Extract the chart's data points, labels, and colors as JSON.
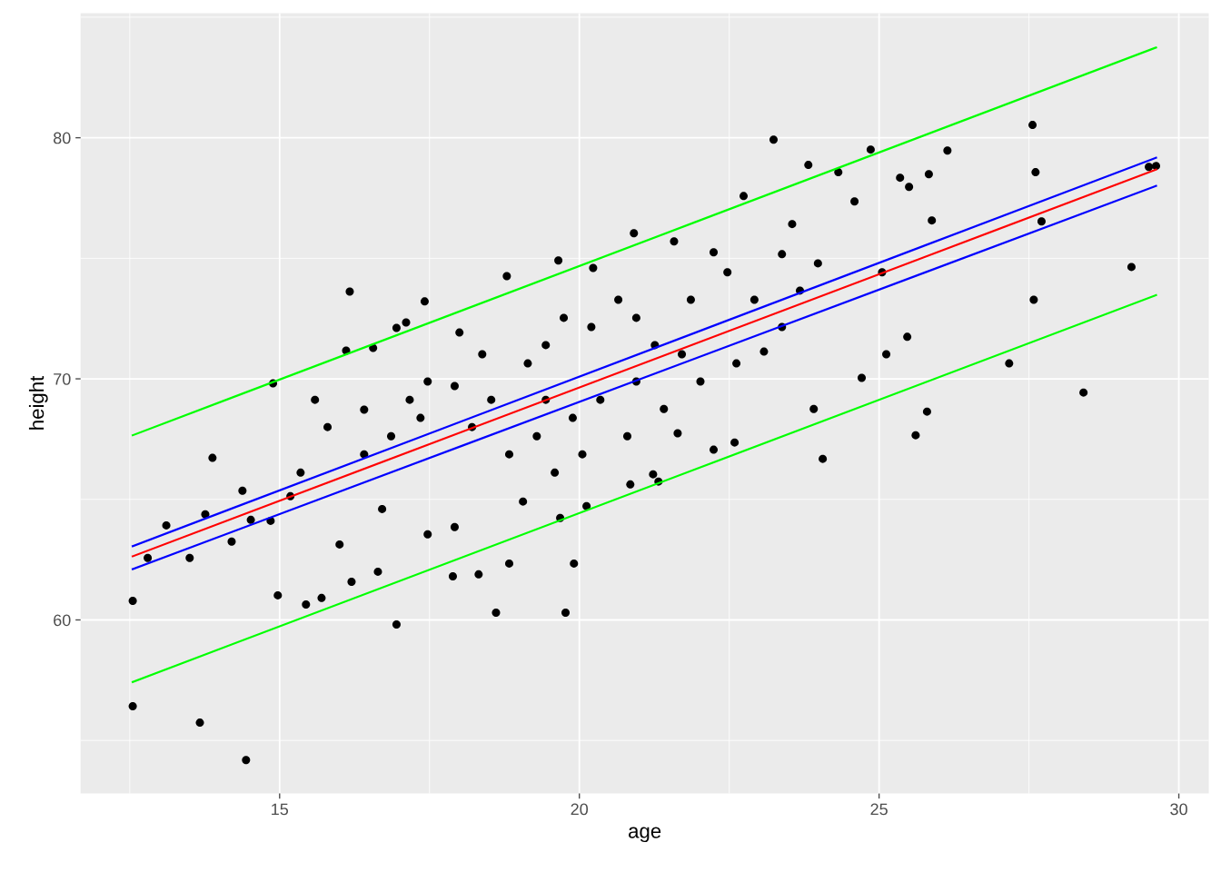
{
  "chart_data": {
    "type": "scatter",
    "xlabel": "age",
    "ylabel": "height",
    "xlim": [
      11.68,
      30.5
    ],
    "ylim": [
      52.8,
      85.17
    ],
    "xticks": [
      {
        "value": 12.5,
        "label": null
      },
      15,
      {
        "value": 17.5,
        "label": null
      },
      20,
      {
        "value": 22.5,
        "label": null
      },
      25,
      {
        "value": 27.5,
        "label": null
      },
      30
    ],
    "yticks": [
      {
        "value": 55,
        "label": null
      },
      60,
      {
        "value": 65,
        "label": null
      },
      70,
      {
        "value": 75,
        "label": null
      },
      80,
      {
        "value": 85,
        "label": null
      }
    ],
    "grid": true,
    "series": [
      {
        "marker": "circle",
        "color": "#000000",
        "x": [
          12.55,
          12.55,
          12.8,
          13.11,
          13.5,
          13.67,
          13.76,
          13.88,
          14.2,
          14.38,
          14.44,
          14.52,
          14.89,
          14.85,
          14.97,
          15.18,
          15.44,
          15.59,
          15.7,
          16.17,
          16.11,
          16.0,
          16.2,
          16.41,
          16.56,
          16.64,
          16.95,
          16.95,
          17.11,
          17.42,
          17.35,
          17.47,
          17.89,
          18.32,
          18.61,
          18.0,
          18.79,
          18.21,
          19.06,
          19.65,
          19.68,
          19.77,
          19.91,
          20.12,
          20.23,
          20.91,
          20.85,
          21.23,
          21.58,
          21.32,
          21.64,
          22.24,
          22.74,
          22.24,
          22.59,
          23.24,
          23.08,
          23.55,
          23.82,
          23.91,
          24.06,
          24.32,
          24.59,
          24.71,
          24.86,
          25.12,
          25.05,
          25.35,
          25.5,
          25.47,
          25.61,
          25.8,
          25.83,
          26.14,
          25.88,
          27.17,
          27.56,
          27.58,
          27.61,
          27.71,
          28.41,
          29.21,
          29.5,
          29.62,
          17.47,
          17.92,
          18.53,
          19.14,
          19.44,
          19.74,
          20.2,
          20.65,
          20.95,
          21.26,
          21.86,
          22.47,
          22.92,
          23.38,
          23.68,
          23.98,
          18.83,
          19.29,
          19.89,
          20.35,
          20.8,
          21.41,
          22.02,
          22.62,
          16.86,
          16.41,
          15.8,
          15.35,
          17.17,
          18.38,
          19.44,
          20.05,
          20.95,
          21.71,
          18.83,
          19.59,
          17.92,
          16.71,
          23.38
        ],
        "values": [
          60.79,
          56.42,
          62.57,
          63.92,
          62.57,
          55.74,
          64.38,
          66.72,
          63.25,
          65.36,
          54.19,
          64.15,
          69.81,
          64.11,
          61.02,
          65.13,
          60.64,
          69.13,
          60.91,
          73.62,
          71.17,
          63.13,
          61.58,
          68.72,
          71.28,
          62.0,
          59.81,
          72.11,
          72.34,
          73.21,
          68.38,
          63.55,
          61.81,
          61.89,
          60.3,
          71.92,
          74.26,
          68.0,
          64.91,
          74.91,
          64.23,
          60.3,
          62.34,
          64.72,
          74.6,
          76.04,
          65.62,
          66.04,
          75.7,
          65.74,
          67.74,
          75.25,
          77.58,
          67.06,
          67.36,
          79.92,
          71.13,
          76.42,
          78.87,
          68.75,
          66.68,
          78.57,
          77.36,
          70.04,
          79.51,
          71.02,
          74.42,
          78.34,
          77.96,
          71.74,
          67.66,
          68.64,
          78.49,
          79.47,
          76.57,
          70.64,
          80.53,
          73.28,
          78.57,
          76.53,
          69.43,
          74.64,
          78.79,
          78.83,
          69.89,
          69.7,
          69.13,
          70.64,
          71.4,
          72.53,
          72.15,
          73.28,
          72.53,
          71.4,
          73.28,
          74.42,
          73.28,
          75.17,
          73.66,
          74.79,
          66.87,
          67.62,
          68.38,
          69.13,
          67.62,
          68.75,
          69.89,
          70.64,
          67.62,
          66.87,
          68.0,
          66.11,
          69.13,
          71.02,
          69.13,
          66.87,
          69.89,
          71.02,
          62.34,
          66.11,
          63.85,
          64.6,
          72.15
        ]
      },
      {
        "type": "line",
        "color": "#00ff00",
        "x": [
          12.55,
          29.62
        ],
        "values": [
          67.66,
          83.74
        ]
      },
      {
        "type": "line",
        "color": "#00ff00",
        "x": [
          12.55,
          29.62
        ],
        "values": [
          57.43,
          73.47
        ]
      },
      {
        "type": "line",
        "color": "#0000ff",
        "x": [
          12.55,
          29.62
        ],
        "values": [
          63.06,
          79.17
        ]
      },
      {
        "type": "line",
        "color": "#0000ff",
        "x": [
          12.55,
          29.62
        ],
        "values": [
          62.11,
          78.0
        ]
      },
      {
        "type": "line",
        "color": "#ff0000",
        "x": [
          12.55,
          29.62
        ],
        "values": [
          62.64,
          78.68
        ]
      }
    ]
  }
}
